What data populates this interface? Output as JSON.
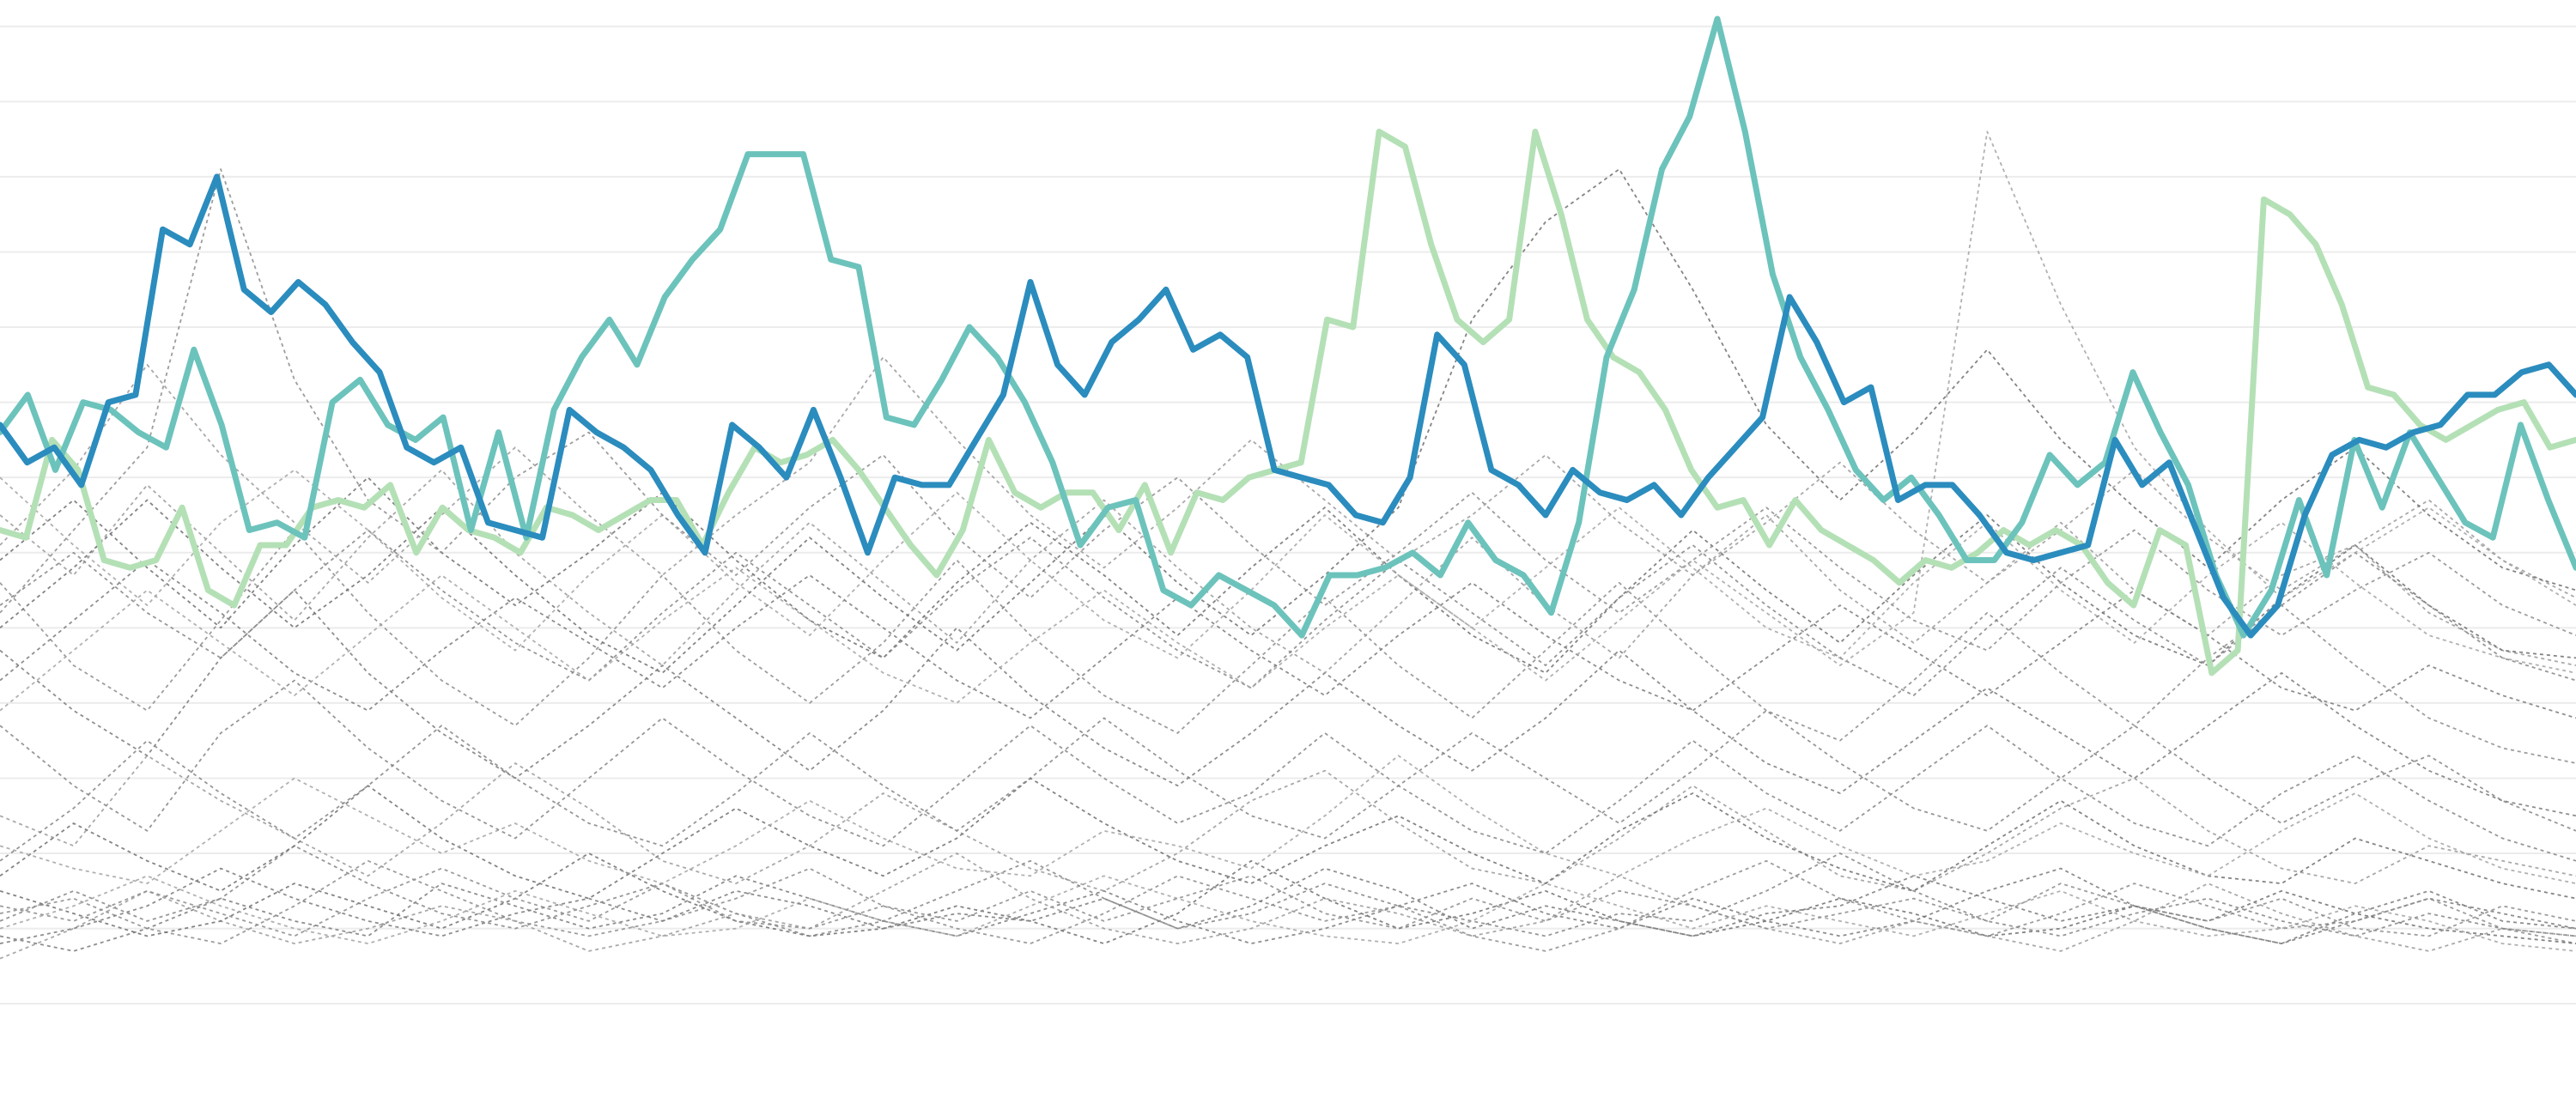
{
  "chart_data": {
    "type": "line",
    "title": "",
    "xlabel": "",
    "ylabel": "",
    "x_range": [
      0,
      119
    ],
    "ylim": [
      0,
      14
    ],
    "grid": "horizontal",
    "gridlines": [
      0.9,
      1.9,
      2.9,
      3.9,
      4.9,
      5.9,
      6.9,
      7.9,
      8.9,
      9.9,
      10.9,
      11.9,
      12.9,
      13.9
    ],
    "axis_labels_shown": false,
    "legend": "none",
    "colors": {
      "context": "#8c8c8c",
      "highlight_light": "#b4e0b6",
      "highlight_mid": "#6cc3bc",
      "highlight_dark": "#2b8cbe",
      "grid": "#ececec"
    },
    "highlight_series": [
      {
        "color": "#b4e0b6",
        "values": [
          7.2,
          7.1,
          8.4,
          8.0,
          6.8,
          6.7,
          6.8,
          7.5,
          6.4,
          6.2,
          7.0,
          7.0,
          7.5,
          7.6,
          7.5,
          7.8,
          6.9,
          7.5,
          7.2,
          7.1,
          6.9,
          7.5,
          7.4,
          7.2,
          7.4,
          7.6,
          7.6,
          7.0,
          7.7,
          8.3,
          8.1,
          8.2,
          8.4,
          8.0,
          7.5,
          7.0,
          6.6,
          7.2,
          8.4,
          7.7,
          7.5,
          7.7,
          7.7,
          7.2,
          7.8,
          6.9,
          7.7,
          7.6,
          7.9,
          8.0,
          8.1,
          10.0,
          9.9,
          12.5,
          12.3,
          11.0,
          10.0,
          9.7,
          10.0,
          12.5,
          11.4,
          10.0,
          9.5,
          9.3,
          8.8,
          8.0,
          7.5,
          7.6,
          7.0,
          7.6,
          7.2,
          7.0,
          6.8,
          6.5,
          6.8,
          6.7,
          6.9,
          7.2,
          7.0,
          7.2,
          7.0,
          6.5,
          6.2,
          7.2,
          7.0,
          5.3,
          5.6,
          11.6,
          11.4,
          11.0,
          10.2,
          9.1,
          9.0,
          8.6,
          8.4,
          8.6,
          8.8,
          8.9,
          8.3,
          8.4
        ],
        "x_start": 0,
        "x_end": 119
      },
      {
        "color": "#6cc3bc",
        "values": [
          8.5,
          9.0,
          8.0,
          8.9,
          8.8,
          8.5,
          8.3,
          9.6,
          8.6,
          7.2,
          7.3,
          7.1,
          8.9,
          9.2,
          8.6,
          8.4,
          8.7,
          7.2,
          8.5,
          7.1,
          8.8,
          9.5,
          10.0,
          9.4,
          10.3,
          10.8,
          11.2,
          12.2,
          12.2,
          12.2,
          10.8,
          10.7,
          8.7,
          8.6,
          9.2,
          9.9,
          9.5,
          8.9,
          8.1,
          7.0,
          7.5,
          7.6,
          6.4,
          6.2,
          6.6,
          6.4,
          6.2,
          5.8,
          6.6,
          6.6,
          6.7,
          6.9,
          6.6,
          7.3,
          6.8,
          6.6,
          6.1,
          7.3,
          9.5,
          10.4,
          12.0,
          12.7,
          14.0,
          12.5,
          10.6,
          9.5,
          8.8,
          8.0,
          7.6,
          7.9,
          7.4,
          6.8,
          6.8,
          7.3,
          8.2,
          7.8,
          8.1,
          9.3,
          8.5,
          7.8,
          6.6,
          5.8,
          6.4,
          7.6,
          6.6,
          8.4,
          7.5,
          8.5,
          7.9,
          7.3,
          7.1,
          8.6,
          7.6,
          6.7
        ],
        "x_start": 0,
        "x_end": 119
      },
      {
        "color": "#2b8cbe",
        "values": [
          8.6,
          8.1,
          8.3,
          7.8,
          8.9,
          9.0,
          11.2,
          11.0,
          11.9,
          10.4,
          10.1,
          10.5,
          10.2,
          9.7,
          9.3,
          8.3,
          8.1,
          8.3,
          7.3,
          7.2,
          7.1,
          8.8,
          8.5,
          8.3,
          8.0,
          7.4,
          6.9,
          8.6,
          8.3,
          7.9,
          8.8,
          7.9,
          6.9,
          7.9,
          7.8,
          7.8,
          8.4,
          9.0,
          10.5,
          9.4,
          9.0,
          9.7,
          10.0,
          10.4,
          9.6,
          9.8,
          9.5,
          8.0,
          7.9,
          7.8,
          7.4,
          7.3,
          7.9,
          9.8,
          9.4,
          8.0,
          7.8,
          7.4,
          8.0,
          7.7,
          7.6,
          7.8,
          7.4,
          7.9,
          8.3,
          8.7,
          10.3,
          9.7,
          8.9,
          9.1,
          7.6,
          7.8,
          7.8,
          7.4,
          6.9,
          6.8,
          6.9,
          7.0,
          8.4,
          7.8,
          8.1,
          7.2,
          6.3,
          5.8,
          6.2,
          7.4,
          8.2,
          8.4,
          8.3,
          8.5,
          8.6,
          9.0,
          9.0,
          9.3,
          9.4,
          9.0
        ],
        "x_start": 0,
        "x_end": 119
      }
    ],
    "context_series": [
      {
        "values": [
          1.8,
          1.6,
          1.9,
          2.3,
          2.0,
          1.8,
          2.5,
          2.2,
          1.9,
          2.1,
          2.6,
          2.3,
          2.0,
          1.8,
          2.1,
          2.4,
          2.0,
          1.7,
          1.9,
          2.2,
          2.5,
          2.1,
          1.9,
          2.3,
          2.0,
          1.8,
          2.0,
          2.4,
          2.7,
          2.2,
          1.9,
          1.7,
          2.0,
          2.3,
          2.1,
          1.9
        ]
      },
      {
        "values": [
          2.1,
          2.3,
          1.9,
          1.7,
          2.2,
          2.8,
          2.4,
          2.0,
          1.8,
          2.0,
          2.3,
          2.7,
          2.2,
          1.9,
          1.7,
          2.1,
          2.6,
          2.3,
          2.0,
          2.2,
          1.8,
          1.6,
          1.9,
          2.4,
          2.8,
          2.3,
          2.0,
          1.8,
          2.1,
          2.5,
          2.2,
          1.9,
          2.0,
          2.3,
          1.9,
          1.7
        ]
      },
      {
        "values": [
          1.5,
          1.9,
          2.4,
          2.0,
          1.7,
          1.9,
          2.2,
          2.0,
          1.6,
          1.8,
          2.1,
          1.9,
          2.4,
          2.9,
          2.3,
          1.9,
          1.7,
          1.9,
          2.3,
          2.1,
          1.8,
          2.0,
          2.6,
          2.2,
          1.9,
          1.7,
          2.0,
          1.8,
          1.6,
          2.0,
          2.5,
          2.1,
          1.8,
          1.6,
          1.9,
          1.8
        ]
      },
      {
        "values": [
          2.4,
          2.1,
          1.8,
          2.0,
          2.5,
          2.2,
          1.9,
          2.3,
          2.9,
          2.4,
          2.0,
          1.8,
          1.9,
          2.2,
          2.0,
          1.7,
          2.1,
          2.8,
          2.3,
          1.9,
          2.1,
          2.4,
          2.0,
          1.8,
          2.0,
          2.3,
          2.1,
          1.8,
          1.9,
          2.2,
          2.0,
          2.4,
          2.1,
          1.9,
          1.8,
          1.7
        ]
      },
      {
        "values": [
          1.9,
          2.2,
          2.6,
          2.2,
          1.9,
          1.7,
          2.0,
          2.4,
          2.1,
          1.8,
          1.9,
          2.3,
          2.0,
          1.8,
          2.2,
          2.6,
          2.3,
          2.0,
          1.8,
          1.7,
          2.0,
          2.5,
          2.2,
          1.9,
          2.2,
          2.0,
          1.8,
          2.1,
          2.4,
          2.0,
          1.8,
          1.9,
          2.2,
          2.0,
          1.7,
          1.6
        ]
      },
      {
        "values": [
          2.0,
          2.4,
          2.0,
          2.3,
          3.0,
          2.5,
          2.1,
          1.9,
          2.2,
          2.5,
          2.1,
          1.8,
          2.0,
          2.4,
          2.8,
          2.3,
          1.9,
          2.1,
          2.5,
          2.2,
          2.0,
          1.8,
          2.1,
          2.0,
          2.4,
          2.9,
          2.4,
          2.0,
          1.8,
          2.1,
          2.3,
          2.0,
          1.8,
          2.1,
          1.9,
          1.8
        ]
      },
      {
        "values": [
          1.7,
          1.9,
          2.2,
          2.7,
          2.3,
          2.0,
          1.8,
          2.1,
          2.3,
          2.0,
          2.4,
          2.2,
          1.9,
          2.1,
          2.0,
          2.3,
          1.9,
          2.2,
          2.7,
          2.4,
          1.9,
          2.2,
          2.0,
          1.8,
          2.1,
          2.2,
          2.6,
          2.3,
          2.0,
          2.2,
          1.9,
          1.7,
          2.1,
          2.4,
          2.0,
          1.9
        ]
      },
      {
        "values": [
          2.2,
          2.0,
          2.4,
          2.1,
          1.8,
          2.3,
          2.7,
          2.3,
          2.0,
          2.5,
          2.0,
          1.9,
          2.2,
          2.0,
          2.4,
          2.0,
          2.3,
          2.6,
          2.1,
          1.9,
          2.3,
          2.0,
          2.4,
          2.2,
          1.9,
          2.1,
          2.3,
          2.0,
          2.5,
          2.2,
          2.0,
          2.3,
          1.9,
          1.8,
          2.2,
          2.0
        ]
      },
      {
        "values": [
          3.4,
          3.0,
          4.2,
          3.6,
          3.1,
          2.6,
          3.3,
          4.1,
          3.5,
          2.8,
          2.5,
          3.0,
          3.7,
          3.2,
          2.7,
          2.4,
          2.9,
          3.6,
          4.0,
          3.3,
          2.7,
          2.5,
          3.1,
          3.8,
          3.2,
          2.6,
          2.4,
          2.9,
          3.5,
          3.9,
          3.2,
          2.7,
          2.5,
          3.0,
          2.8,
          2.6
        ]
      },
      {
        "values": [
          2.6,
          3.3,
          2.8,
          2.4,
          3.0,
          3.8,
          3.1,
          2.6,
          2.3,
          2.9,
          3.5,
          3.0,
          2.6,
          3.1,
          3.9,
          3.3,
          2.8,
          2.5,
          3.0,
          3.4,
          2.9,
          2.5,
          3.2,
          3.7,
          3.1,
          2.7,
          2.4,
          3.0,
          3.6,
          3.0,
          2.6,
          2.5,
          3.1,
          2.8,
          2.5,
          2.3
        ]
      },
      {
        "values": [
          3.0,
          2.7,
          2.5,
          3.2,
          3.9,
          3.4,
          2.9,
          3.3,
          2.8,
          2.5,
          3.0,
          3.6,
          3.1,
          2.7,
          2.6,
          3.2,
          3.0,
          2.7,
          3.4,
          4.2,
          3.5,
          2.9,
          2.6,
          3.1,
          3.5,
          3.0,
          2.6,
          2.8,
          3.3,
          2.9,
          2.6,
          3.2,
          3.7,
          3.1,
          2.7,
          2.5
        ]
      },
      {
        "values": [
          4.6,
          3.8,
          3.2,
          4.5,
          5.2,
          4.3,
          3.6,
          3.1,
          3.9,
          4.7,
          4.0,
          3.4,
          3.0,
          3.8,
          4.6,
          3.9,
          3.3,
          3.7,
          4.5,
          3.8,
          3.2,
          2.9,
          3.6,
          4.4,
          3.7,
          3.2,
          3.9,
          4.6,
          3.9,
          3.3,
          3.0,
          3.7,
          4.2,
          3.6,
          3.1,
          2.8
        ]
      },
      {
        "values": [
          5.6,
          4.8,
          4.2,
          5.5,
          6.4,
          5.3,
          4.5,
          3.9,
          4.6,
          5.4,
          4.7,
          4.0,
          4.8,
          5.9,
          5.0,
          4.3,
          3.8,
          4.5,
          5.3,
          4.6,
          4.0,
          4.7,
          5.6,
          4.8,
          4.1,
          3.7,
          4.4,
          5.1,
          4.5,
          3.9,
          4.6,
          5.3,
          4.6,
          4.0,
          3.6,
          3.4
        ]
      },
      {
        "values": [
          6.5,
          5.4,
          4.8,
          6.0,
          7.2,
          6.1,
          5.2,
          4.6,
          5.5,
          6.6,
          5.6,
          4.9,
          5.7,
          6.8,
          5.8,
          5.0,
          4.5,
          5.4,
          6.3,
          5.4,
          4.7,
          5.6,
          6.5,
          5.6,
          4.8,
          4.4,
          5.2,
          6.1,
          5.3,
          4.6,
          5.5,
          6.2,
          5.4,
          4.7,
          4.3,
          4.1
        ]
      },
      {
        "values": [
          7.4,
          6.6,
          7.8,
          6.9,
          6.0,
          7.1,
          8.0,
          6.9,
          6.1,
          5.4,
          6.4,
          7.3,
          6.5,
          5.7,
          6.8,
          7.6,
          6.7,
          5.9,
          5.3,
          6.2,
          7.1,
          6.2,
          5.5,
          6.6,
          7.4,
          6.4,
          5.7,
          6.5,
          7.3,
          6.4,
          5.8,
          6.6,
          7.0,
          6.1,
          5.6,
          5.4
        ]
      },
      {
        "values": [
          6.8,
          7.6,
          6.7,
          5.9,
          7.0,
          7.9,
          6.9,
          6.2,
          6.9,
          7.7,
          6.8,
          6.0,
          5.5,
          6.5,
          7.3,
          6.6,
          5.8,
          6.7,
          7.5,
          6.6,
          5.8,
          5.3,
          6.3,
          7.2,
          6.4,
          5.7,
          6.6,
          7.4,
          6.5,
          5.8,
          5.4,
          6.3,
          7.0,
          6.2,
          5.6,
          5.5
        ]
      },
      {
        "values": [
          7.9,
          7.0,
          6.2,
          7.3,
          8.0,
          7.2,
          6.3,
          5.6,
          6.6,
          7.4,
          6.5,
          5.8,
          6.8,
          7.7,
          6.8,
          6.0,
          5.5,
          6.4,
          7.4,
          6.6,
          5.9,
          6.7,
          7.5,
          6.7,
          5.9,
          5.5,
          6.5,
          7.3,
          6.4,
          5.7,
          6.6,
          7.3,
          6.5,
          5.8,
          5.5,
          5.3
        ]
      },
      {
        "values": [
          6.2,
          6.9,
          6.1,
          5.5,
          6.4,
          7.2,
          6.4,
          5.7,
          5.2,
          6.1,
          6.9,
          6.2,
          5.5,
          6.4,
          7.1,
          6.3,
          5.6,
          5.1,
          6.0,
          6.8,
          6.1,
          5.4,
          6.3,
          7.0,
          6.2,
          5.5,
          5.0,
          5.9,
          6.7,
          6.0,
          5.4,
          6.2,
          6.9,
          6.2,
          5.5,
          5.2
        ]
      },
      {
        "values": [
          5.2,
          6.0,
          6.8,
          6.1,
          5.3,
          4.8,
          5.6,
          6.3,
          5.7,
          5.1,
          5.9,
          6.6,
          5.9,
          5.2,
          4.7,
          5.5,
          6.3,
          5.6,
          5.0,
          5.8,
          6.5,
          5.8,
          5.2,
          4.8,
          5.5,
          6.2,
          5.6,
          5.0,
          5.7,
          6.4,
          5.8,
          5.1,
          4.8,
          5.4,
          5.0,
          4.7
        ]
      },
      {
        "values": [
          6.1,
          7.2,
          8.3,
          12.0,
          9.2,
          7.6,
          6.9,
          7.9,
          8.5,
          7.4,
          6.6,
          7.5,
          8.2,
          7.1,
          6.3,
          7.2,
          7.9,
          7.0,
          6.2,
          6.9,
          7.7,
          6.8,
          6.1,
          6.8,
          7.5,
          6.7,
          6.0,
          5.6,
          6.5,
          7.2,
          6.4,
          5.8,
          6.4,
          6.9,
          6.2,
          5.8
        ]
      },
      {
        "values": [
          7.0,
          8.0,
          9.4,
          8.2,
          7.3,
          6.5,
          7.4,
          8.3,
          7.4,
          6.6,
          7.4,
          8.1,
          9.5,
          8.4,
          7.4,
          6.7,
          7.5,
          8.4,
          7.6,
          6.8,
          7.4,
          8.2,
          7.3,
          6.6,
          7.3,
          8.1,
          7.2,
          6.5,
          7.2,
          8.0,
          7.1,
          6.4,
          7.0,
          7.6,
          6.8,
          6.3
        ]
      },
      {
        "values": [
          5.9,
          6.7,
          7.6,
          6.7,
          5.9,
          6.6,
          7.5,
          6.6,
          5.8,
          5.3,
          6.2,
          7.1,
          6.3,
          5.6,
          6.5,
          7.4,
          6.5,
          5.8,
          6.6,
          7.5,
          10.0,
          11.3,
          12.0,
          10.4,
          8.6,
          7.6,
          8.5,
          9.6,
          8.4,
          7.5,
          6.7,
          7.6,
          8.3,
          7.4,
          6.7,
          6.4
        ]
      },
      {
        "values": [
          4.8,
          5.6,
          6.4,
          5.7,
          5.0,
          5.8,
          6.6,
          5.9,
          5.2,
          6.0,
          6.7,
          6.0,
          5.3,
          4.9,
          5.7,
          6.4,
          5.7,
          5.1,
          5.9,
          6.6,
          5.9,
          5.2,
          6.0,
          6.8,
          6.1,
          5.4,
          6.1,
          12.5,
          10.2,
          8.3,
          7.2,
          6.3,
          6.9,
          7.5,
          6.8,
          6.2
        ]
      },
      {
        "values": [
          2.8,
          3.5,
          4.4,
          3.7,
          3.1,
          3.8,
          4.6,
          3.9,
          3.3,
          3.0,
          3.7,
          4.5,
          3.8,
          3.2,
          3.9,
          4.7,
          4.0,
          3.4,
          3.1,
          3.8,
          4.5,
          3.9,
          3.3,
          4.0,
          4.8,
          4.1,
          3.5,
          3.2,
          3.9,
          4.6,
          3.9,
          3.3,
          3.8,
          4.2,
          3.6,
          3.2
        ]
      }
    ]
  }
}
